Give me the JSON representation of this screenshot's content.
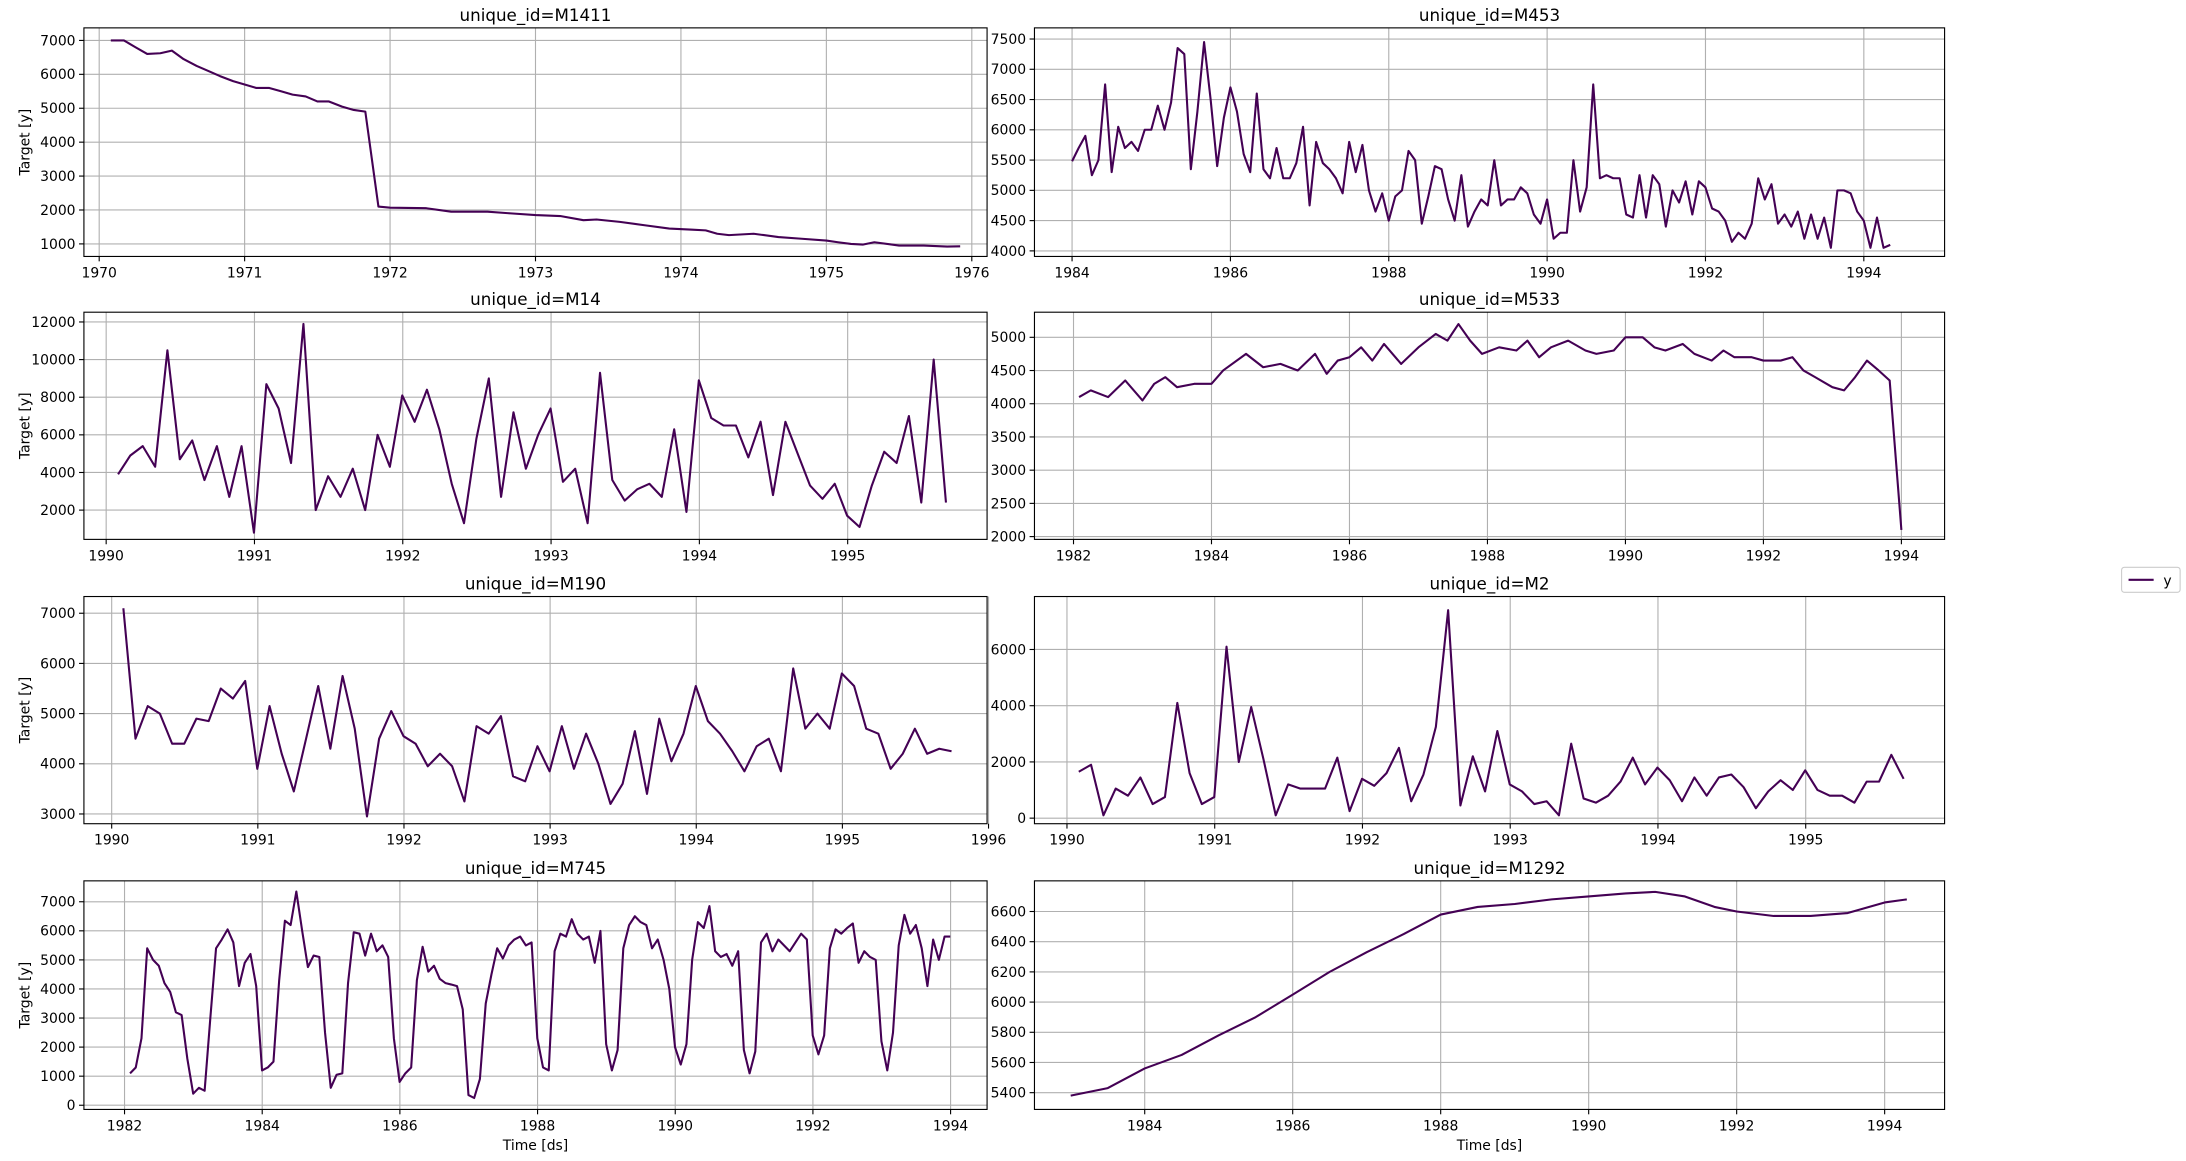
{
  "chart_data": [
    {
      "type": "line",
      "title": "unique_id=M1411",
      "xlabel": "",
      "ylabel": "Target [y]",
      "xlim": [
        1969.895,
        1976.105
      ],
      "ylim": [
        630,
        7370
      ],
      "xticks": [
        1970,
        1971,
        1972,
        1973,
        1974,
        1975,
        1976
      ],
      "yticks": [
        1000,
        2000,
        3000,
        4000,
        5000,
        6000,
        7000
      ],
      "grid": true,
      "series": [
        {
          "name": "y",
          "x": [
            1970.08,
            1970.17,
            1970.25,
            1970.33,
            1970.42,
            1970.5,
            1970.58,
            1970.67,
            1970.75,
            1970.83,
            1970.92,
            1971.0,
            1971.08,
            1971.17,
            1971.25,
            1971.33,
            1971.42,
            1971.5,
            1971.58,
            1971.67,
            1971.75,
            1971.83,
            1971.92,
            1972.0,
            1972.25,
            1972.42,
            1972.5,
            1972.67,
            1972.83,
            1973.0,
            1973.17,
            1973.33,
            1973.42,
            1973.58,
            1973.75,
            1973.92,
            1974.08,
            1974.17,
            1974.25,
            1974.33,
            1974.5,
            1974.67,
            1974.83,
            1975.0,
            1975.08,
            1975.17,
            1975.25,
            1975.33,
            1975.5,
            1975.67,
            1975.83,
            1975.92
          ],
          "y": [
            7000,
            7000,
            6800,
            6600,
            6620,
            6700,
            6450,
            6250,
            6100,
            5950,
            5800,
            5700,
            5600,
            5600,
            5500,
            5400,
            5350,
            5200,
            5200,
            5050,
            4950,
            4900,
            2100,
            2070,
            2050,
            1950,
            1950,
            1950,
            1900,
            1850,
            1820,
            1700,
            1720,
            1650,
            1550,
            1450,
            1420,
            1400,
            1300,
            1260,
            1300,
            1200,
            1150,
            1100,
            1050,
            1000,
            980,
            1050,
            950,
            950,
            920,
            930
          ]
        }
      ]
    },
    {
      "type": "line",
      "title": "unique_id=M453",
      "xlabel": "",
      "ylabel": "",
      "xlim": [
        1983.525,
        1995.02
      ],
      "ylim": [
        3908,
        7684
      ],
      "xticks": [
        1984,
        1986,
        1988,
        1990,
        1992,
        1994
      ],
      "yticks": [
        4000,
        4500,
        5000,
        5500,
        6000,
        6500,
        7000,
        7500
      ],
      "grid": true,
      "x_start": 1984.0,
      "x_step": 0.08333,
      "series": [
        {
          "name": "y",
          "y": [
            5480,
            5700,
            5900,
            5250,
            5500,
            6750,
            5300,
            6050,
            5700,
            5800,
            5650,
            6000,
            6000,
            6400,
            6000,
            6450,
            7350,
            7250,
            5350,
            6300,
            7450,
            6500,
            5400,
            6200,
            6700,
            6300,
            5600,
            5300,
            6600,
            5350,
            5200,
            5700,
            5200,
            5200,
            5450,
            6050,
            4750,
            5800,
            5450,
            5350,
            5200,
            4950,
            5800,
            5300,
            5750,
            5000,
            4650,
            4950,
            4500,
            4900,
            5000,
            5650,
            5500,
            4450,
            4900,
            5400,
            5350,
            4850,
            4500,
            5250,
            4400,
            4650,
            4850,
            4750,
            5500,
            4750,
            4850,
            4850,
            5050,
            4950,
            4600,
            4450,
            4850,
            4200,
            4300,
            4300,
            5500,
            4650,
            5050,
            6750,
            5200,
            5250,
            5200,
            5200,
            4600,
            4550,
            5250,
            4550,
            5250,
            5100,
            4400,
            5000,
            4800,
            5150,
            4600,
            5150,
            5050,
            4700,
            4650,
            4500,
            4150,
            4300,
            4200,
            4450,
            5200,
            4850,
            5100,
            4450,
            4600,
            4400,
            4650,
            4200,
            4600,
            4200,
            4550,
            4050,
            5000,
            5000,
            4950,
            4650,
            4500,
            4050,
            4550,
            4050,
            4100
          ]
        }
      ]
    },
    {
      "type": "line",
      "title": "unique_id=M14",
      "xlabel": "",
      "ylabel": "Target [y]",
      "xlim": [
        1989.85,
        1995.94
      ],
      "ylim": [
        444,
        12519
      ],
      "xticks": [
        1990,
        1991,
        1992,
        1993,
        1994,
        1995
      ],
      "yticks": [
        2000,
        4000,
        6000,
        8000,
        10000,
        12000
      ],
      "grid": true,
      "x_start": 1990.08,
      "x_step": 0.08333,
      "series": [
        {
          "name": "y",
          "y": [
            3900,
            4900,
            5400,
            4300,
            10500,
            4700,
            5700,
            3600,
            5400,
            2700,
            5400,
            800,
            8700,
            7400,
            4500,
            11900,
            2000,
            3800,
            2700,
            4200,
            2000,
            6000,
            4300,
            8100,
            6700,
            8400,
            6300,
            3400,
            1300,
            5800,
            9000,
            2700,
            7200,
            4200,
            6000,
            7400,
            3500,
            4200,
            1300,
            9300,
            3600,
            2500,
            3100,
            3400,
            2700,
            6300,
            1900,
            8900,
            6900,
            6500,
            6500,
            4800,
            6700,
            2800,
            6700,
            5000,
            3300,
            2600,
            3400,
            1700,
            1100,
            3300,
            5100,
            4500,
            7000,
            2400,
            10000,
            2400
          ]
        }
      ]
    },
    {
      "type": "line",
      "title": "unique_id=M533",
      "xlabel": "",
      "ylabel": "",
      "xlim": [
        1981.434,
        1994.626
      ],
      "ylim": [
        1958,
        5378
      ],
      "xticks": [
        1982,
        1984,
        1986,
        1988,
        1990,
        1992,
        1994
      ],
      "yticks": [
        2000,
        2500,
        3000,
        3500,
        4000,
        4500,
        5000
      ],
      "grid": true,
      "series": [
        {
          "name": "y",
          "x": [
            1982.08,
            1982.25,
            1982.5,
            1982.75,
            1983.0,
            1983.17,
            1983.33,
            1983.5,
            1983.75,
            1984.0,
            1984.17,
            1984.5,
            1984.75,
            1985.0,
            1985.25,
            1985.5,
            1985.67,
            1985.83,
            1986.0,
            1986.17,
            1986.33,
            1986.5,
            1986.75,
            1987.0,
            1987.25,
            1987.42,
            1987.58,
            1987.75,
            1987.92,
            1988.17,
            1988.42,
            1988.58,
            1988.75,
            1988.92,
            1989.17,
            1989.42,
            1989.58,
            1989.83,
            1990.0,
            1990.25,
            1990.42,
            1990.58,
            1990.83,
            1991.0,
            1991.25,
            1991.42,
            1991.58,
            1991.83,
            1992.0,
            1992.25,
            1992.42,
            1992.58,
            1992.75,
            1993.0,
            1993.17,
            1993.33,
            1993.5,
            1993.67,
            1993.83,
            1994.0
          ],
          "y": [
            4100,
            4200,
            4100,
            4350,
            4050,
            4300,
            4400,
            4250,
            4300,
            4300,
            4500,
            4750,
            4550,
            4600,
            4500,
            4750,
            4450,
            4650,
            4700,
            4850,
            4650,
            4900,
            4600,
            4850,
            5050,
            4950,
            5200,
            4950,
            4750,
            4850,
            4800,
            4950,
            4700,
            4850,
            4950,
            4800,
            4750,
            4800,
            5000,
            5000,
            4850,
            4800,
            4900,
            4750,
            4650,
            4800,
            4700,
            4700,
            4650,
            4650,
            4700,
            4500,
            4400,
            4250,
            4200,
            4400,
            4650,
            4500,
            4350,
            2100
          ]
        }
      ]
    },
    {
      "type": "line",
      "title": "unique_id=M190",
      "xlabel": "",
      "ylabel": "Target [y]",
      "xlim": [
        1989.81,
        1995.99
      ],
      "ylim": [
        2806,
        7333
      ],
      "xticks": [
        1990,
        1991,
        1992,
        1993,
        1994,
        1995,
        1996
      ],
      "yticks": [
        3000,
        4000,
        5000,
        6000,
        7000
      ],
      "grid": true,
      "x_start": 1990.08,
      "x_step": 0.08333,
      "series": [
        {
          "name": "y",
          "y": [
            7100,
            4500,
            5150,
            5000,
            4400,
            4400,
            4900,
            4850,
            5500,
            5300,
            5650,
            3900,
            5150,
            4200,
            3450,
            4500,
            5550,
            4300,
            5750,
            4700,
            2950,
            4500,
            5050,
            4550,
            4400,
            3950,
            4200,
            3950,
            3250,
            4750,
            4600,
            4950,
            3750,
            3650,
            4350,
            3850,
            4750,
            3900,
            4600,
            4000,
            3200,
            3600,
            4650,
            3400,
            4900,
            4050,
            4600,
            5550,
            4850,
            4600,
            4250,
            3850,
            4350,
            4500,
            3850,
            5900,
            4700,
            5000,
            4700,
            5800,
            5550,
            4700,
            4600,
            3900,
            4200,
            4700,
            4200,
            4300,
            4250
          ]
        }
      ]
    },
    {
      "type": "line",
      "title": "unique_id=M2",
      "xlabel": "",
      "ylabel": "",
      "xlim": [
        1989.78,
        1995.94
      ],
      "ylim": [
        -198,
        7884
      ],
      "xticks": [
        1990,
        1991,
        1992,
        1993,
        1994,
        1995
      ],
      "yticks": [
        0,
        2000,
        4000,
        6000
      ],
      "grid": true,
      "x_start": 1990.08,
      "x_step": 0.08333,
      "series": [
        {
          "name": "y",
          "y": [
            1650,
            1900,
            100,
            1050,
            800,
            1450,
            500,
            750,
            4100,
            1600,
            500,
            750,
            6100,
            2000,
            3950,
            2100,
            100,
            1200,
            1050,
            1050,
            1050,
            2150,
            250,
            1400,
            1150,
            1600,
            2500,
            600,
            1550,
            3250,
            7400,
            450,
            2200,
            950,
            3100,
            1200,
            950,
            500,
            600,
            100,
            2650,
            700,
            550,
            800,
            1300,
            2150,
            1200,
            1800,
            1350,
            600,
            1450,
            800,
            1450,
            1550,
            1100,
            350,
            950,
            1350,
            1000,
            1700,
            1000,
            800,
            800,
            550,
            1300,
            1300,
            2250,
            1400
          ]
        }
      ]
    },
    {
      "type": "line",
      "title": "unique_id=M745",
      "xlabel": "Time [ds]",
      "ylabel": "Target [y]",
      "xlim": [
        1981.41,
        1994.53
      ],
      "ylim": [
        -144,
        7719
      ],
      "xticks": [
        1982,
        1984,
        1986,
        1988,
        1990,
        1992,
        1994
      ],
      "yticks": [
        0,
        1000,
        2000,
        3000,
        4000,
        5000,
        6000,
        7000
      ],
      "grid": true,
      "x_start": 1982.08,
      "x_step": 0.08333,
      "series": [
        {
          "name": "y",
          "y": [
            1100,
            1300,
            2300,
            5400,
            5000,
            4800,
            4200,
            3900,
            3200,
            3100,
            1600,
            400,
            600,
            500,
            3000,
            5400,
            5700,
            6050,
            5600,
            4100,
            4900,
            5200,
            4100,
            1200,
            1300,
            1500,
            4300,
            6350,
            6200,
            7350,
            6000,
            4750,
            5150,
            5100,
            2500,
            600,
            1050,
            1100,
            4200,
            5950,
            5900,
            5150,
            5900,
            5300,
            5500,
            5100,
            2300,
            800,
            1100,
            1300,
            4300,
            5450,
            4600,
            4800,
            4350,
            4200,
            4150,
            4100,
            3300,
            350,
            250,
            900,
            3500,
            4500,
            5400,
            5050,
            5500,
            5700,
            5800,
            5500,
            5600,
            2300,
            1300,
            1200,
            5300,
            5900,
            5800,
            6400,
            5900,
            5700,
            5800,
            4900,
            6000,
            2100,
            1200,
            1900,
            5400,
            6200,
            6500,
            6300,
            6200,
            5400,
            5700,
            5000,
            4000,
            2000,
            1400,
            2100,
            5000,
            6300,
            6100,
            6850,
            5300,
            5100,
            5200,
            4800,
            5300,
            1900,
            1100,
            1850,
            5600,
            5900,
            5300,
            5700,
            5500,
            5300,
            5600,
            5900,
            5700,
            2400,
            1750,
            2400,
            5400,
            6050,
            5900,
            6100,
            6250,
            4900,
            5300,
            5100,
            5000,
            2200,
            1200,
            2500,
            5500,
            6550,
            5900,
            6200,
            5400,
            4100,
            5700,
            5000,
            5800,
            5800
          ]
        }
      ]
    },
    {
      "type": "line",
      "title": "unique_id=M1292",
      "xlabel": "Time [ds]",
      "ylabel": "",
      "xlim": [
        1982.51,
        1994.81
      ],
      "ylim": [
        5289,
        6803
      ],
      "xticks": [
        1984,
        1986,
        1988,
        1990,
        1992,
        1994
      ],
      "yticks": [
        5400,
        5600,
        5800,
        6000,
        6200,
        6400,
        6600
      ],
      "grid": true,
      "series": [
        {
          "name": "y",
          "x": [
            1983.0,
            1983.5,
            1984.0,
            1984.5,
            1985.0,
            1985.5,
            1986.0,
            1986.5,
            1987.0,
            1987.5,
            1988.0,
            1988.5,
            1989.0,
            1989.5,
            1990.0,
            1990.5,
            1990.9,
            1991.3,
            1991.7,
            1992.0,
            1992.5,
            1993.0,
            1993.5,
            1994.0,
            1994.3
          ],
          "y": [
            5380,
            5430,
            5560,
            5650,
            5780,
            5900,
            6050,
            6200,
            6330,
            6450,
            6580,
            6630,
            6650,
            6680,
            6700,
            6720,
            6730,
            6700,
            6630,
            6600,
            6570,
            6570,
            6590,
            6660,
            6680
          ]
        }
      ]
    }
  ],
  "legend": {
    "label": "y",
    "position": "right",
    "color": "#440154"
  },
  "colors": {
    "line": "#440154",
    "grid": "#b0b0b0"
  }
}
